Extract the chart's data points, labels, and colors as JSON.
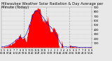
{
  "title": "Milwaukee Weather Solar Radiation & Day Average per Minute (Today)",
  "bg_color": "#e8e8e8",
  "plot_bg_color": "#e8e8e8",
  "bar_color": "#ff0000",
  "avg_line_color": "#0000cc",
  "legend_red_color": "#ff0000",
  "legend_blue_color": "#0000ff",
  "grid_color": "#aaaaaa",
  "ylim": [
    0,
    900
  ],
  "ytick_values": [
    100,
    200,
    300,
    400,
    500,
    600,
    700,
    800,
    900
  ],
  "num_points": 240,
  "title_fontsize": 3.8,
  "tick_fontsize": 2.8,
  "vline_positions": [
    0.25,
    0.5,
    0.75
  ]
}
